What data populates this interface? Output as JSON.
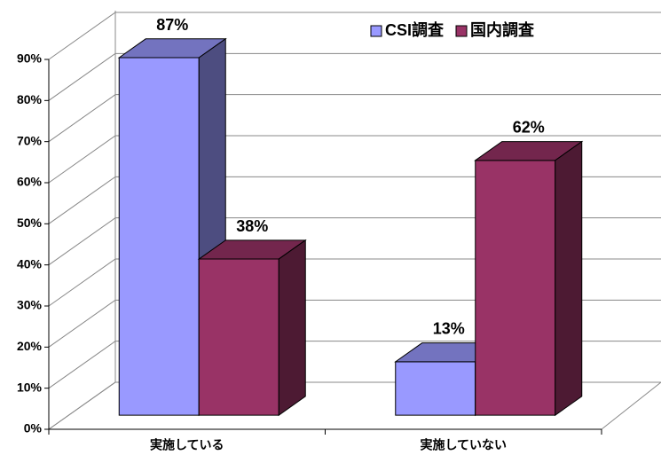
{
  "chart_data": {
    "type": "bar3d",
    "categories": [
      "実施している",
      "実施していない"
    ],
    "series": [
      {
        "name": "CSI調査",
        "color": "#9999ff",
        "values": [
          87,
          13
        ],
        "value_labels": [
          "87%",
          "13%"
        ]
      },
      {
        "name": "国内調査",
        "color": "#993366",
        "values": [
          38,
          62
        ],
        "value_labels": [
          "38%",
          "62%"
        ]
      }
    ],
    "ylim": [
      0,
      90
    ],
    "yticks": [
      {
        "value": 0,
        "label": "0%"
      },
      {
        "value": 10,
        "label": "10%"
      },
      {
        "value": 20,
        "label": "20%"
      },
      {
        "value": 30,
        "label": "30%"
      },
      {
        "value": 40,
        "label": "40%"
      },
      {
        "value": 50,
        "label": "50%"
      },
      {
        "value": 60,
        "label": "60%"
      },
      {
        "value": 70,
        "label": "70%"
      },
      {
        "value": 80,
        "label": "80%"
      },
      {
        "value": 90,
        "label": "90%"
      }
    ],
    "grid": true,
    "legend": "top-right"
  }
}
